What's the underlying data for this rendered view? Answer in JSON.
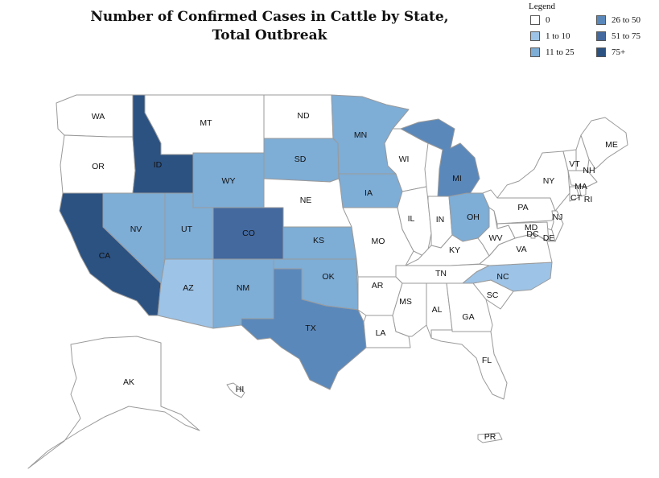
{
  "map": {
    "title_line1": "Number of Confirmed Cases in Cattle by State,",
    "title_line2": "Total Outbreak"
  },
  "legend": {
    "title": "Legend",
    "bins": [
      {
        "label": "0",
        "color": "#ffffff"
      },
      {
        "label": "1 to 10",
        "color": "#9dc3e6"
      },
      {
        "label": "11 to 25",
        "color": "#7eadd6"
      },
      {
        "label": "26 to 50",
        "color": "#5b88ba"
      },
      {
        "label": "51 to 75",
        "color": "#44699f"
      },
      {
        "label": "75+",
        "color": "#2c5282"
      }
    ]
  },
  "states": [
    {
      "abbr": "WA",
      "bin": 0
    },
    {
      "abbr": "OR",
      "bin": 0
    },
    {
      "abbr": "CA",
      "bin": 5
    },
    {
      "abbr": "ID",
      "bin": 5
    },
    {
      "abbr": "NV",
      "bin": 2
    },
    {
      "abbr": "MT",
      "bin": 0
    },
    {
      "abbr": "WY",
      "bin": 2
    },
    {
      "abbr": "UT",
      "bin": 2
    },
    {
      "abbr": "AZ",
      "bin": 1
    },
    {
      "abbr": "CO",
      "bin": 4
    },
    {
      "abbr": "NM",
      "bin": 2
    },
    {
      "abbr": "ND",
      "bin": 0
    },
    {
      "abbr": "SD",
      "bin": 2
    },
    {
      "abbr": "NE",
      "bin": 0
    },
    {
      "abbr": "KS",
      "bin": 2
    },
    {
      "abbr": "OK",
      "bin": 2
    },
    {
      "abbr": "TX",
      "bin": 3
    },
    {
      "abbr": "MN",
      "bin": 2
    },
    {
      "abbr": "IA",
      "bin": 2
    },
    {
      "abbr": "MO",
      "bin": 0
    },
    {
      "abbr": "AR",
      "bin": 0
    },
    {
      "abbr": "LA",
      "bin": 0
    },
    {
      "abbr": "WI",
      "bin": 0
    },
    {
      "abbr": "IL",
      "bin": 0
    },
    {
      "abbr": "MI",
      "bin": 3
    },
    {
      "abbr": "IN",
      "bin": 0
    },
    {
      "abbr": "OH",
      "bin": 2
    },
    {
      "abbr": "KY",
      "bin": 0
    },
    {
      "abbr": "TN",
      "bin": 0
    },
    {
      "abbr": "MS",
      "bin": 0
    },
    {
      "abbr": "AL",
      "bin": 0
    },
    {
      "abbr": "GA",
      "bin": 0
    },
    {
      "abbr": "FL",
      "bin": 0
    },
    {
      "abbr": "SC",
      "bin": 0
    },
    {
      "abbr": "NC",
      "bin": 1
    },
    {
      "abbr": "VA",
      "bin": 0
    },
    {
      "abbr": "WV",
      "bin": 0
    },
    {
      "abbr": "PA",
      "bin": 0
    },
    {
      "abbr": "NY",
      "bin": 0
    },
    {
      "abbr": "VT",
      "bin": 0
    },
    {
      "abbr": "NH",
      "bin": 0
    },
    {
      "abbr": "ME",
      "bin": 0
    },
    {
      "abbr": "MA",
      "bin": 0
    },
    {
      "abbr": "CT",
      "bin": 0
    },
    {
      "abbr": "RI",
      "bin": 0
    },
    {
      "abbr": "NJ",
      "bin": 0
    },
    {
      "abbr": "DE",
      "bin": 0
    },
    {
      "abbr": "MD",
      "bin": 0
    },
    {
      "abbr": "DC",
      "bin": 0
    },
    {
      "abbr": "AK",
      "bin": 0
    },
    {
      "abbr": "HI",
      "bin": 0
    },
    {
      "abbr": "PR",
      "bin": 0
    }
  ]
}
